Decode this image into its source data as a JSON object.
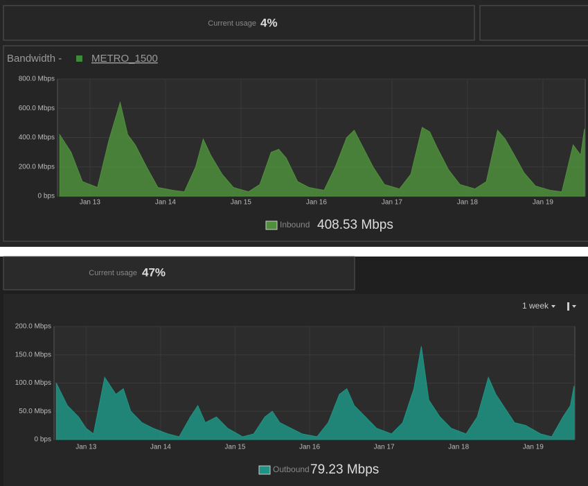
{
  "top_panel": {
    "usage_label": "Current usage",
    "usage_value": "4%",
    "title_prefix": "Bandwidth - ",
    "title_link": "METRO_1500"
  },
  "bottom_panel": {
    "usage_label": "Current usage",
    "usage_value": "47%",
    "range_menu": "1 week"
  },
  "chart_data": [
    {
      "type": "area",
      "x": [
        12.6,
        12.75,
        12.9,
        13.0,
        13.1,
        13.25,
        13.4,
        13.5,
        13.6,
        13.75,
        13.9,
        14.1,
        14.25,
        14.4,
        14.5,
        14.6,
        14.75,
        14.9,
        15.1,
        15.25,
        15.4,
        15.5,
        15.6,
        15.75,
        15.9,
        16.1,
        16.25,
        16.4,
        16.5,
        16.6,
        16.75,
        16.9,
        17.1,
        17.25,
        17.4,
        17.5,
        17.6,
        17.75,
        17.9,
        18.1,
        18.25,
        18.4,
        18.5,
        18.6,
        18.75,
        18.9,
        19.1,
        19.25,
        19.4,
        19.5,
        19.55
      ],
      "series": [
        {
          "name": "Inbound",
          "color": "#4f8f3c",
          "values": [
            420,
            300,
            100,
            80,
            60,
            380,
            640,
            420,
            350,
            200,
            60,
            40,
            30,
            200,
            390,
            280,
            150,
            60,
            30,
            80,
            300,
            320,
            260,
            100,
            60,
            40,
            200,
            400,
            450,
            350,
            200,
            80,
            50,
            150,
            470,
            440,
            330,
            180,
            80,
            50,
            100,
            450,
            390,
            300,
            160,
            70,
            40,
            30,
            350,
            280,
            460
          ]
        }
      ],
      "legend_value": "408.53 Mbps",
      "xlim": [
        12.57,
        19.56
      ],
      "xticks": [
        {
          "value": 13,
          "label": "Jan 13"
        },
        {
          "value": 14,
          "label": "Jan 14"
        },
        {
          "value": 15,
          "label": "Jan 15"
        },
        {
          "value": 16,
          "label": "Jan 16"
        },
        {
          "value": 17,
          "label": "Jan 17"
        },
        {
          "value": 18,
          "label": "Jan 18"
        },
        {
          "value": 19,
          "label": "Jan 19"
        }
      ],
      "ylim": [
        0,
        800
      ],
      "yticks": [
        {
          "value": 0,
          "label": "0 bps"
        },
        {
          "value": 200,
          "label": "200.0 Mbps"
        },
        {
          "value": 400,
          "label": "400.0 Mbps"
        },
        {
          "value": 600,
          "label": "600.0 Mbps"
        },
        {
          "value": 800,
          "label": "800.0 Mbps"
        }
      ],
      "grid": true
    },
    {
      "type": "area",
      "x": [
        12.6,
        12.75,
        12.9,
        13.0,
        13.1,
        13.25,
        13.4,
        13.5,
        13.6,
        13.75,
        13.9,
        14.1,
        14.25,
        14.4,
        14.5,
        14.6,
        14.75,
        14.9,
        15.1,
        15.25,
        15.4,
        15.5,
        15.6,
        15.75,
        15.9,
        16.1,
        16.25,
        16.4,
        16.5,
        16.6,
        16.75,
        16.9,
        17.1,
        17.25,
        17.4,
        17.5,
        17.6,
        17.75,
        17.9,
        18.1,
        18.25,
        18.4,
        18.5,
        18.6,
        18.75,
        18.9,
        19.1,
        19.25,
        19.4,
        19.5,
        19.55
      ],
      "series": [
        {
          "name": "Outbound",
          "color": "#1f9484",
          "values": [
            100,
            60,
            40,
            20,
            10,
            110,
            80,
            90,
            50,
            30,
            20,
            10,
            5,
            40,
            60,
            30,
            40,
            20,
            5,
            10,
            40,
            50,
            30,
            20,
            10,
            5,
            30,
            80,
            90,
            60,
            40,
            20,
            10,
            30,
            90,
            165,
            70,
            40,
            20,
            10,
            40,
            110,
            80,
            60,
            30,
            25,
            10,
            5,
            40,
            60,
            95
          ]
        }
      ],
      "legend_value": "79.23 Mbps",
      "xlim": [
        12.57,
        19.56
      ],
      "xticks": [
        {
          "value": 13,
          "label": "Jan 13"
        },
        {
          "value": 14,
          "label": "Jan 14"
        },
        {
          "value": 15,
          "label": "Jan 15"
        },
        {
          "value": 16,
          "label": "Jan 16"
        },
        {
          "value": 17,
          "label": "Jan 17"
        },
        {
          "value": 18,
          "label": "Jan 18"
        },
        {
          "value": 19,
          "label": "Jan 19"
        }
      ],
      "ylim": [
        0,
        200
      ],
      "yticks": [
        {
          "value": 0,
          "label": "0 bps"
        },
        {
          "value": 50,
          "label": "50.0 Mbps"
        },
        {
          "value": 100,
          "label": "100.0 Mbps"
        },
        {
          "value": 150,
          "label": "150.0 Mbps"
        },
        {
          "value": 200,
          "label": "200.0 Mbps"
        }
      ],
      "grid": true
    }
  ]
}
